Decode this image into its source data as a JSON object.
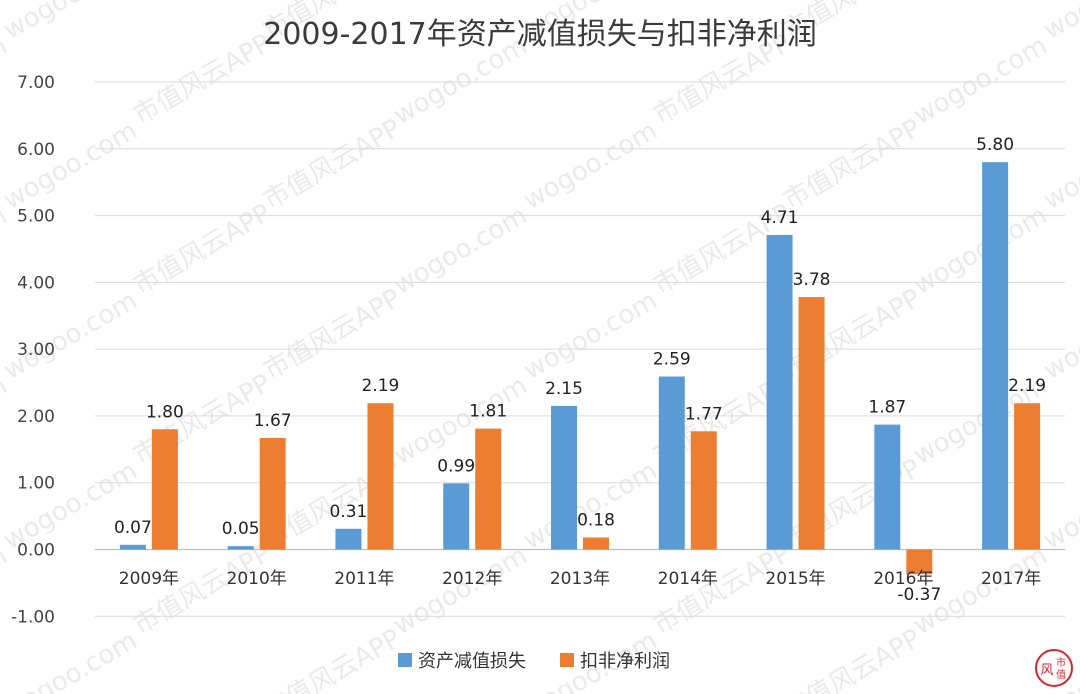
{
  "chart_data": {
    "type": "bar",
    "title": "2009-2017年资产减值损失与扣非净利润",
    "categories": [
      "2009年",
      "2010年",
      "2011年",
      "2012年",
      "2013年",
      "2014年",
      "2015年",
      "2016年",
      "2017年"
    ],
    "series": [
      {
        "name": "资产减值损失",
        "color": "#5b9bd5",
        "values": [
          0.07,
          0.05,
          0.31,
          0.99,
          2.15,
          2.59,
          4.71,
          1.87,
          5.8
        ],
        "labels": [
          "0.07",
          "0.05",
          "0.31",
          "0.99",
          "2.15",
          "2.59",
          "4.71",
          "1.87",
          "5.80"
        ]
      },
      {
        "name": "扣非净利润",
        "color": "#ed7d31",
        "values": [
          1.8,
          1.67,
          2.19,
          1.81,
          0.18,
          1.77,
          3.78,
          -0.37,
          2.19
        ],
        "labels": [
          "1.80",
          "1.67",
          "2.19",
          "1.81",
          "0.18",
          "1.77",
          "3.78",
          "-0.37",
          "2.19"
        ]
      }
    ],
    "ylim": [
      -1,
      7
    ],
    "yticks": [
      -1,
      0,
      1,
      2,
      3,
      4,
      5,
      6,
      7
    ],
    "ytick_labels": [
      "-1.00",
      "0.00",
      "1.00",
      "2.00",
      "3.00",
      "4.00",
      "5.00",
      "6.00",
      "7.00"
    ],
    "grid": true,
    "legend": "bottom"
  },
  "watermark": {
    "text_cn": "市值风云APP",
    "text_url": "wogoo.com"
  },
  "logo": {
    "char1": "风",
    "char2": "市",
    "char3": "值",
    "color": "#d9262e"
  }
}
